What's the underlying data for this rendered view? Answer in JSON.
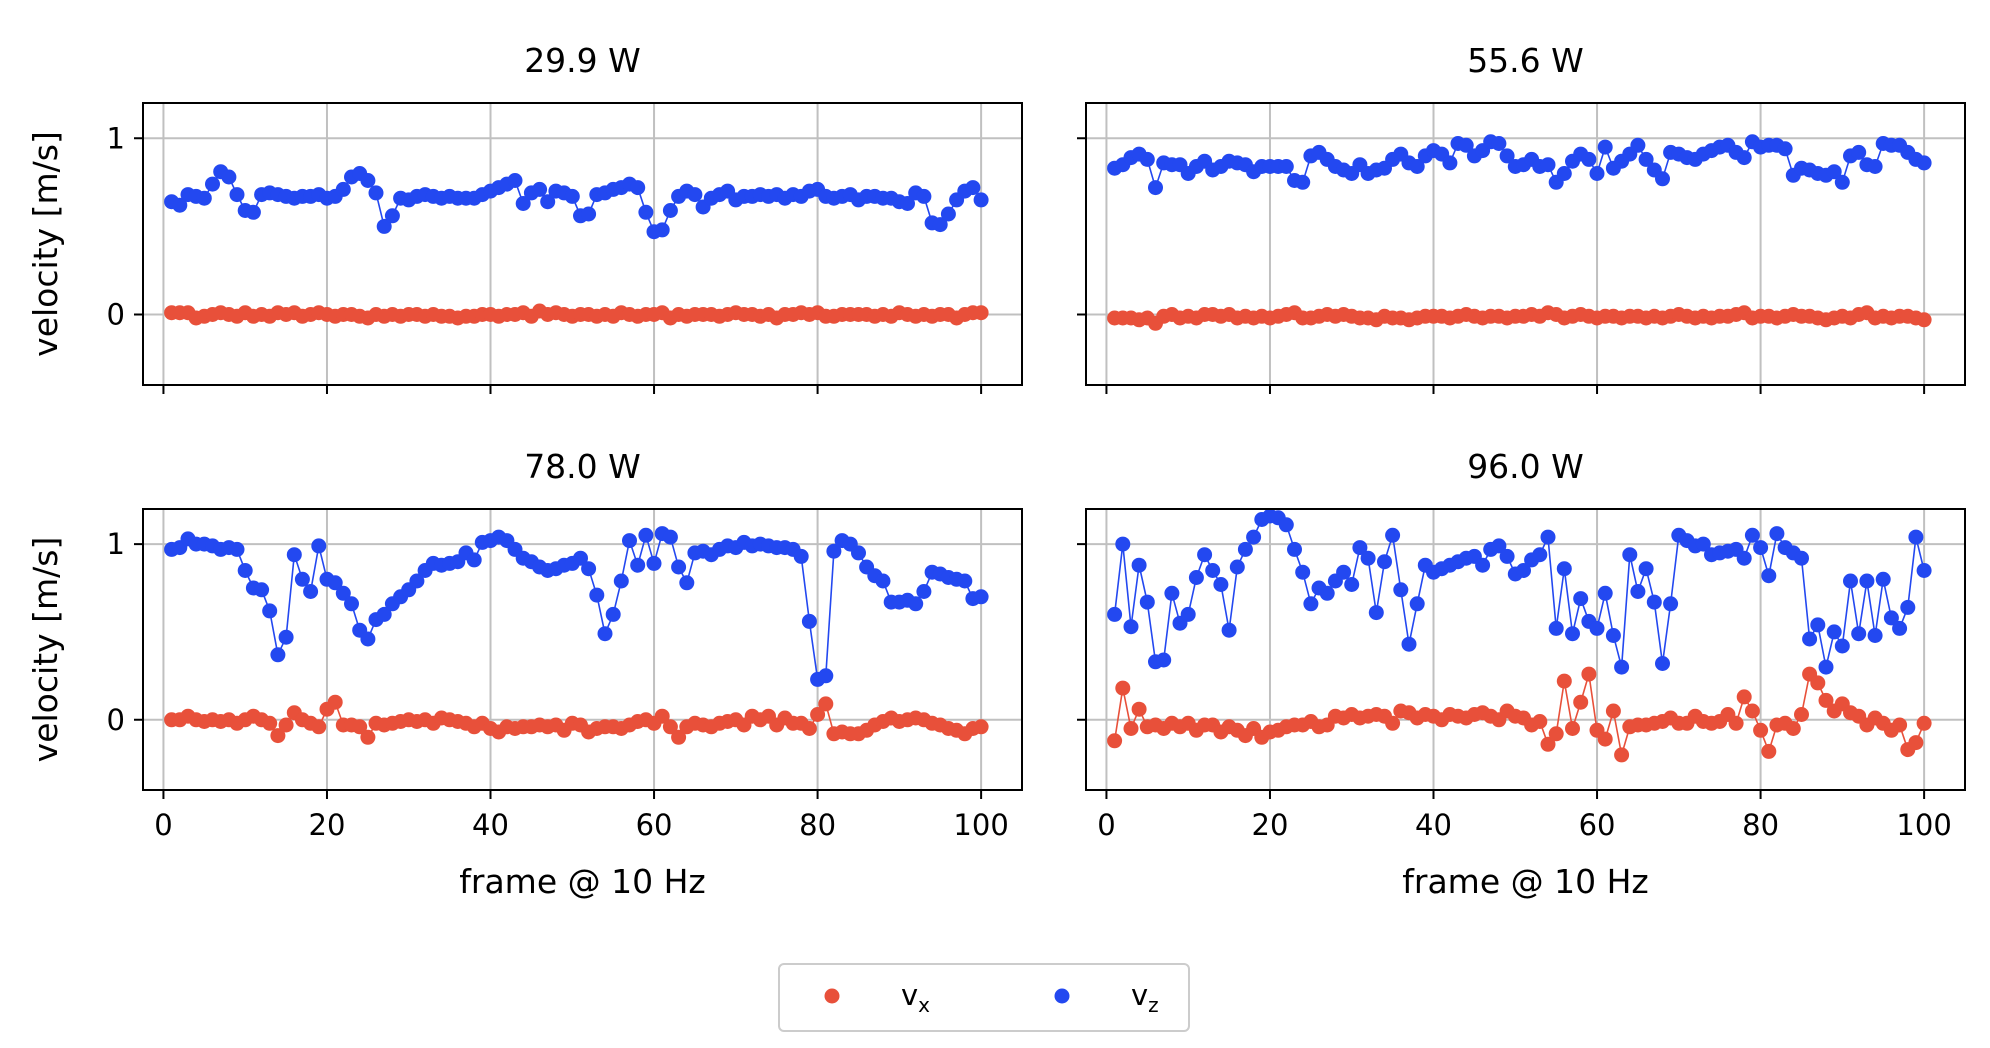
{
  "colors": {
    "vx": "#e8503a",
    "vz": "#2348f0",
    "grid": "#c0c0c0",
    "axis": "#000000"
  },
  "legend": {
    "placement": "bottom-center",
    "entries": [
      {
        "prefix": "v",
        "sub": "x"
      },
      {
        "prefix": "v",
        "sub": "z"
      }
    ]
  },
  "chart_data": [
    {
      "type": "line",
      "title": "29.9 W",
      "ylabel": "velocity [m/s]",
      "xlabel": "",
      "xlim": [
        -2.5,
        105
      ],
      "ylim": [
        -0.4,
        1.2
      ],
      "xticks": [
        0,
        20,
        40,
        60,
        80,
        100
      ],
      "yticks": [
        0,
        1
      ],
      "x_tick_labels_shown": false,
      "y_tick_labels_shown": true,
      "grid": true,
      "series": [
        {
          "key": "vx",
          "values": [
            0.01,
            0.01,
            0.01,
            -0.02,
            -0.01,
            0.0,
            0.01,
            0.0,
            -0.01,
            0.01,
            -0.01,
            0.0,
            -0.01,
            0.01,
            0.0,
            0.01,
            -0.01,
            0.0,
            0.01,
            0.0,
            -0.01,
            0.0,
            0.0,
            -0.01,
            -0.02,
            0.0,
            -0.01,
            0.0,
            -0.01,
            0.0,
            0.0,
            -0.01,
            0.0,
            -0.01,
            -0.01,
            -0.02,
            -0.01,
            -0.01,
            0.0,
            0.0,
            -0.01,
            0.0,
            0.0,
            0.01,
            -0.01,
            0.02,
            0.0,
            0.01,
            0.0,
            -0.01,
            0.0,
            0.0,
            -0.01,
            0.0,
            -0.01,
            0.01,
            0.0,
            -0.01,
            0.0,
            0.0,
            0.01,
            -0.02,
            0.0,
            -0.01,
            0.0,
            0.0,
            0.0,
            -0.01,
            0.0,
            0.01,
            0.0,
            0.0,
            -0.01,
            0.0,
            -0.02,
            0.0,
            0.0,
            0.01,
            0.0,
            0.01,
            -0.01,
            -0.01,
            0.0,
            0.0,
            0.0,
            0.0,
            -0.01,
            0.0,
            -0.01,
            0.01,
            0.0,
            -0.01,
            0.0,
            -0.01,
            0.0,
            0.0,
            -0.02,
            0.0,
            0.01,
            0.01
          ]
        },
        {
          "key": "vz",
          "values": [
            0.64,
            0.62,
            0.68,
            0.67,
            0.66,
            0.74,
            0.81,
            0.78,
            0.68,
            0.59,
            0.58,
            0.68,
            0.69,
            0.68,
            0.67,
            0.66,
            0.67,
            0.67,
            0.68,
            0.66,
            0.67,
            0.71,
            0.78,
            0.8,
            0.76,
            0.69,
            0.5,
            0.56,
            0.66,
            0.65,
            0.67,
            0.68,
            0.67,
            0.66,
            0.67,
            0.66,
            0.66,
            0.66,
            0.68,
            0.7,
            0.72,
            0.74,
            0.76,
            0.63,
            0.69,
            0.71,
            0.64,
            0.7,
            0.69,
            0.67,
            0.56,
            0.57,
            0.68,
            0.69,
            0.71,
            0.72,
            0.74,
            0.72,
            0.58,
            0.47,
            0.48,
            0.59,
            0.67,
            0.7,
            0.68,
            0.61,
            0.66,
            0.68,
            0.7,
            0.65,
            0.67,
            0.67,
            0.68,
            0.67,
            0.68,
            0.66,
            0.68,
            0.67,
            0.7,
            0.71,
            0.67,
            0.66,
            0.67,
            0.68,
            0.65,
            0.67,
            0.67,
            0.66,
            0.66,
            0.64,
            0.63,
            0.69,
            0.67,
            0.52,
            0.51,
            0.57,
            0.65,
            0.7,
            0.72,
            0.65
          ]
        }
      ]
    },
    {
      "type": "line",
      "title": "55.6 W",
      "ylabel": "",
      "xlabel": "",
      "xlim": [
        -2.5,
        105
      ],
      "ylim": [
        -0.4,
        1.2
      ],
      "xticks": [
        0,
        20,
        40,
        60,
        80,
        100
      ],
      "yticks": [
        0,
        1
      ],
      "x_tick_labels_shown": false,
      "y_tick_labels_shown": false,
      "grid": true,
      "series": [
        {
          "key": "vx",
          "values": [
            -0.02,
            -0.02,
            -0.02,
            -0.03,
            -0.02,
            -0.05,
            -0.01,
            0.0,
            -0.02,
            -0.01,
            -0.02,
            0.0,
            0.0,
            -0.01,
            0.0,
            -0.02,
            -0.01,
            -0.02,
            -0.01,
            -0.02,
            -0.01,
            0.0,
            0.01,
            -0.02,
            -0.02,
            -0.01,
            0.0,
            -0.01,
            0.0,
            -0.01,
            -0.02,
            -0.02,
            -0.03,
            -0.01,
            -0.02,
            -0.02,
            -0.03,
            -0.02,
            -0.01,
            -0.01,
            -0.01,
            -0.02,
            -0.01,
            0.0,
            -0.01,
            -0.02,
            -0.01,
            -0.01,
            -0.02,
            -0.01,
            -0.01,
            0.0,
            -0.01,
            0.01,
            0.0,
            -0.02,
            -0.01,
            0.0,
            -0.01,
            -0.02,
            -0.01,
            -0.01,
            -0.02,
            -0.01,
            -0.01,
            -0.02,
            -0.01,
            -0.02,
            -0.01,
            0.0,
            -0.01,
            -0.02,
            -0.01,
            -0.02,
            -0.01,
            -0.01,
            0.0,
            0.01,
            -0.02,
            -0.01,
            -0.01,
            -0.02,
            -0.01,
            0.0,
            -0.01,
            -0.01,
            -0.02,
            -0.03,
            -0.02,
            -0.01,
            -0.02,
            0.0,
            0.01,
            -0.02,
            -0.01,
            -0.02,
            -0.01,
            -0.01,
            -0.02,
            -0.03
          ]
        },
        {
          "key": "vz",
          "values": [
            0.83,
            0.85,
            0.89,
            0.91,
            0.88,
            0.72,
            0.86,
            0.85,
            0.85,
            0.8,
            0.84,
            0.87,
            0.82,
            0.84,
            0.87,
            0.86,
            0.85,
            0.81,
            0.84,
            0.84,
            0.84,
            0.84,
            0.76,
            0.75,
            0.9,
            0.92,
            0.88,
            0.84,
            0.82,
            0.8,
            0.85,
            0.8,
            0.82,
            0.83,
            0.88,
            0.91,
            0.86,
            0.84,
            0.9,
            0.93,
            0.91,
            0.86,
            0.97,
            0.96,
            0.9,
            0.93,
            0.98,
            0.97,
            0.9,
            0.84,
            0.85,
            0.88,
            0.84,
            0.85,
            0.75,
            0.8,
            0.87,
            0.91,
            0.88,
            0.8,
            0.95,
            0.83,
            0.87,
            0.91,
            0.96,
            0.88,
            0.82,
            0.77,
            0.92,
            0.91,
            0.89,
            0.88,
            0.91,
            0.93,
            0.95,
            0.96,
            0.92,
            0.89,
            0.98,
            0.95,
            0.96,
            0.96,
            0.94,
            0.79,
            0.83,
            0.82,
            0.8,
            0.79,
            0.81,
            0.75,
            0.9,
            0.92,
            0.85,
            0.84,
            0.97,
            0.96,
            0.96,
            0.92,
            0.88,
            0.86
          ]
        }
      ]
    },
    {
      "type": "line",
      "title": "78.0 W",
      "ylabel": "velocity [m/s]",
      "xlabel": "frame @ 10 Hz",
      "xlim": [
        -2.5,
        105
      ],
      "ylim": [
        -0.4,
        1.2
      ],
      "xticks": [
        0,
        20,
        40,
        60,
        80,
        100
      ],
      "yticks": [
        0,
        1
      ],
      "x_tick_labels_shown": true,
      "y_tick_labels_shown": true,
      "grid": true,
      "series": [
        {
          "key": "vx",
          "values": [
            0.0,
            0.0,
            0.02,
            0.0,
            -0.01,
            0.0,
            -0.01,
            0.0,
            -0.02,
            0.0,
            0.02,
            0.0,
            -0.02,
            -0.09,
            -0.03,
            0.04,
            0.0,
            -0.02,
            -0.04,
            0.06,
            0.1,
            -0.03,
            -0.03,
            -0.04,
            -0.1,
            -0.02,
            -0.03,
            -0.02,
            -0.01,
            0.0,
            -0.01,
            0.0,
            -0.02,
            0.01,
            0.0,
            -0.01,
            -0.02,
            -0.04,
            -0.02,
            -0.05,
            -0.07,
            -0.04,
            -0.05,
            -0.04,
            -0.04,
            -0.03,
            -0.04,
            -0.03,
            -0.06,
            -0.02,
            -0.03,
            -0.07,
            -0.05,
            -0.04,
            -0.04,
            -0.05,
            -0.03,
            -0.01,
            0.0,
            -0.02,
            0.02,
            -0.04,
            -0.1,
            -0.04,
            -0.02,
            -0.03,
            -0.04,
            -0.02,
            -0.01,
            0.0,
            -0.03,
            0.02,
            0.0,
            0.02,
            -0.03,
            0.01,
            -0.02,
            -0.02,
            -0.05,
            0.03,
            0.09,
            -0.08,
            -0.07,
            -0.08,
            -0.08,
            -0.06,
            -0.03,
            -0.01,
            0.01,
            -0.01,
            0.0,
            0.01,
            0.0,
            -0.02,
            -0.03,
            -0.05,
            -0.06,
            -0.08,
            -0.05,
            -0.04
          ]
        },
        {
          "key": "vz",
          "values": [
            0.97,
            0.98,
            1.03,
            1.0,
            1.0,
            0.99,
            0.97,
            0.98,
            0.97,
            0.85,
            0.75,
            0.74,
            0.62,
            0.37,
            0.47,
            0.94,
            0.8,
            0.73,
            0.99,
            0.8,
            0.78,
            0.72,
            0.66,
            0.51,
            0.46,
            0.57,
            0.6,
            0.66,
            0.7,
            0.74,
            0.79,
            0.85,
            0.89,
            0.88,
            0.89,
            0.9,
            0.95,
            0.91,
            1.01,
            1.02,
            1.04,
            1.02,
            0.97,
            0.92,
            0.9,
            0.87,
            0.85,
            0.86,
            0.88,
            0.89,
            0.92,
            0.86,
            0.71,
            0.49,
            0.6,
            0.79,
            1.02,
            0.88,
            1.05,
            0.89,
            1.06,
            1.04,
            0.87,
            0.78,
            0.95,
            0.96,
            0.94,
            0.97,
            0.99,
            0.98,
            1.01,
            0.99,
            1.0,
            0.99,
            0.98,
            0.98,
            0.97,
            0.93,
            0.56,
            0.23,
            0.25,
            0.96,
            1.02,
            1.0,
            0.95,
            0.87,
            0.82,
            0.79,
            0.67,
            0.67,
            0.68,
            0.66,
            0.73,
            0.84,
            0.83,
            0.81,
            0.8,
            0.79,
            0.69,
            0.7
          ]
        }
      ]
    },
    {
      "type": "line",
      "title": "96.0 W",
      "ylabel": "",
      "xlabel": "frame @ 10 Hz",
      "xlim": [
        -2.5,
        105
      ],
      "ylim": [
        -0.4,
        1.2
      ],
      "xticks": [
        0,
        20,
        40,
        60,
        80,
        100
      ],
      "yticks": [
        0,
        1
      ],
      "x_tick_labels_shown": true,
      "y_tick_labels_shown": false,
      "grid": true,
      "series": [
        {
          "key": "vx",
          "values": [
            -0.12,
            0.18,
            -0.05,
            0.06,
            -0.04,
            -0.03,
            -0.05,
            -0.02,
            -0.04,
            -0.02,
            -0.06,
            -0.03,
            -0.03,
            -0.07,
            -0.04,
            -0.06,
            -0.09,
            -0.05,
            -0.1,
            -0.07,
            -0.06,
            -0.04,
            -0.03,
            -0.03,
            -0.01,
            -0.04,
            -0.03,
            0.02,
            0.01,
            0.03,
            0.01,
            0.02,
            0.03,
            0.02,
            -0.02,
            0.05,
            0.04,
            0.01,
            0.03,
            0.02,
            0.0,
            0.03,
            0.02,
            0.01,
            0.03,
            0.04,
            0.02,
            0.0,
            0.05,
            0.02,
            0.01,
            -0.03,
            -0.01,
            -0.14,
            -0.08,
            0.22,
            -0.05,
            0.1,
            0.26,
            -0.06,
            -0.11,
            0.05,
            -0.2,
            -0.04,
            -0.03,
            -0.03,
            -0.02,
            -0.01,
            0.01,
            -0.02,
            -0.02,
            0.02,
            -0.01,
            -0.02,
            -0.01,
            0.03,
            -0.02,
            0.13,
            0.05,
            -0.06,
            -0.18,
            -0.03,
            -0.02,
            -0.05,
            0.03,
            0.26,
            0.21,
            0.11,
            0.05,
            0.09,
            0.04,
            0.02,
            -0.03,
            0.01,
            -0.02,
            -0.06,
            -0.03,
            -0.17,
            -0.13,
            -0.02
          ]
        },
        {
          "key": "vz",
          "values": [
            0.6,
            1.0,
            0.53,
            0.88,
            0.67,
            0.33,
            0.34,
            0.72,
            0.55,
            0.6,
            0.81,
            0.94,
            0.85,
            0.77,
            0.51,
            0.87,
            0.97,
            1.04,
            1.14,
            1.16,
            1.15,
            1.11,
            0.97,
            0.84,
            0.66,
            0.75,
            0.72,
            0.79,
            0.84,
            0.77,
            0.98,
            0.92,
            0.61,
            0.9,
            1.05,
            0.74,
            0.43,
            0.66,
            0.88,
            0.84,
            0.86,
            0.88,
            0.9,
            0.92,
            0.93,
            0.88,
            0.97,
            0.99,
            0.93,
            0.83,
            0.85,
            0.91,
            0.94,
            1.04,
            0.52,
            0.86,
            0.49,
            0.69,
            0.56,
            0.52,
            0.72,
            0.48,
            0.3,
            0.94,
            0.73,
            0.86,
            0.67,
            0.32,
            0.66,
            1.05,
            1.02,
            0.99,
            1.0,
            0.94,
            0.95,
            0.96,
            0.97,
            0.92,
            1.05,
            0.98,
            0.82,
            1.06,
            0.98,
            0.95,
            0.92,
            0.46,
            0.54,
            0.3,
            0.5,
            0.42,
            0.79,
            0.49,
            0.79,
            0.48,
            0.8,
            0.58,
            0.52,
            0.64,
            1.04,
            0.85
          ]
        }
      ]
    }
  ]
}
